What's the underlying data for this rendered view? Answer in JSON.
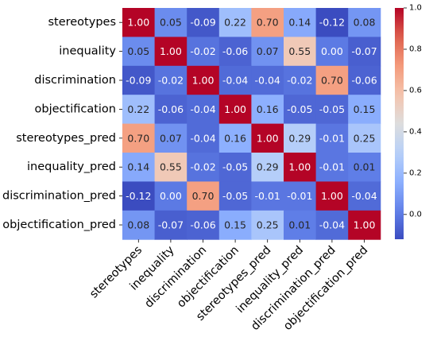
{
  "chart_data": {
    "type": "heatmap",
    "title": "",
    "xlabel": "",
    "ylabel": "",
    "rows": [
      "stereotypes",
      "inequality",
      "discrimination",
      "objectification",
      "stereotypes_pred",
      "inequality_pred",
      "discrimination_pred",
      "objectification_pred"
    ],
    "columns": [
      "stereotypes",
      "inequality",
      "discrimination",
      "objectification",
      "stereotypes_pred",
      "inequality_pred",
      "discrimination_pred",
      "objectification_pred"
    ],
    "values": [
      [
        1.0,
        0.05,
        -0.09,
        0.22,
        0.7,
        0.14,
        -0.12,
        0.08
      ],
      [
        0.05,
        1.0,
        -0.02,
        -0.06,
        0.07,
        0.55,
        0.0,
        -0.07
      ],
      [
        -0.09,
        -0.02,
        1.0,
        -0.04,
        -0.04,
        -0.02,
        0.7,
        -0.06
      ],
      [
        0.22,
        -0.06,
        -0.04,
        1.0,
        0.16,
        -0.05,
        -0.05,
        0.15
      ],
      [
        0.7,
        0.07,
        -0.04,
        0.16,
        1.0,
        0.29,
        -0.01,
        0.25
      ],
      [
        0.14,
        0.55,
        -0.02,
        -0.05,
        0.29,
        1.0,
        -0.01,
        0.01
      ],
      [
        -0.12,
        0.0,
        0.7,
        -0.05,
        -0.01,
        -0.01,
        1.0,
        -0.04
      ],
      [
        0.08,
        -0.07,
        -0.06,
        0.15,
        0.25,
        0.01,
        -0.04,
        1.0
      ]
    ],
    "value_labels": [
      [
        "1.00",
        "0.05",
        "-0.09",
        "0.22",
        "0.70",
        "0.14",
        "-0.12",
        "0.08"
      ],
      [
        "0.05",
        "1.00",
        "-0.02",
        "-0.06",
        "0.07",
        "0.55",
        "0.00",
        "-0.07"
      ],
      [
        "-0.09",
        "-0.02",
        "1.00",
        "-0.04",
        "-0.04",
        "-0.02",
        "0.70",
        "-0.06"
      ],
      [
        "0.22",
        "-0.06",
        "-0.04",
        "1.00",
        "0.16",
        "-0.05",
        "-0.05",
        "0.15"
      ],
      [
        "0.70",
        "0.07",
        "-0.04",
        "0.16",
        "1.00",
        "0.29",
        "-0.01",
        "0.25"
      ],
      [
        "0.14",
        "0.55",
        "-0.02",
        "-0.05",
        "0.29",
        "1.00",
        "-0.01",
        "0.01"
      ],
      [
        "-0.12",
        "0.00",
        "0.70",
        "-0.05",
        "-0.01",
        "-0.01",
        "1.00",
        "-0.04"
      ],
      [
        "0.08",
        "-0.07",
        "-0.06",
        "0.15",
        "0.25",
        "0.01",
        "-0.04",
        "1.00"
      ]
    ],
    "colormap": "coolwarm",
    "vmin": -0.12,
    "vmax": 1.0,
    "colorbar": {
      "ticks": [
        0.0,
        0.2,
        0.4,
        0.6,
        0.8,
        1.0
      ],
      "tick_labels": [
        "0.0",
        "0.2",
        "0.4",
        "0.6",
        "0.8",
        "1.0"
      ]
    },
    "annotated": true,
    "grid": false
  }
}
